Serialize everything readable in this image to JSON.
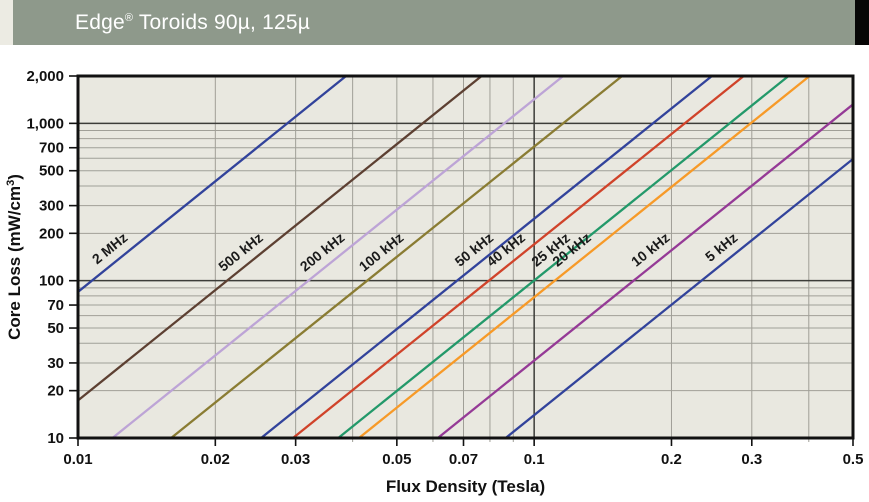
{
  "header": {
    "title_main": "Edge",
    "title_registered": "®",
    "title_rest": " Toroids 90µ, 125µ"
  },
  "colors": {
    "header_bar": "#8e998b",
    "header_left_strip": "#ecebe3",
    "header_right_strip": "#060606",
    "plot_background": "#e9e8e0",
    "grid_minor": "#a09f97",
    "grid_major": "#3c3c38",
    "axis_frame": "#111111",
    "tick_text": "#111111",
    "series_label_text": "#1a1a1a"
  },
  "chart_data": {
    "type": "line",
    "title": "Edge Toroids 90µ, 125µ core loss curves",
    "xlabel": "Flux Density (Tesla)",
    "ylabel_prefix": "Core Loss (mW/cm",
    "ylabel_sup": "3",
    "ylabel_suffix": ")",
    "x_scale": "log",
    "y_scale": "log",
    "xlim": [
      0.01,
      0.5
    ],
    "ylim": [
      10,
      2000
    ],
    "grid": true,
    "x_ticks": [
      {
        "value": 0.01,
        "label": "0.01"
      },
      {
        "value": 0.02,
        "label": "0.02"
      },
      {
        "value": 0.03,
        "label": "0.03"
      },
      {
        "value": 0.05,
        "label": "0.05"
      },
      {
        "value": 0.07,
        "label": "0.07"
      },
      {
        "value": 0.1,
        "label": "0.1"
      },
      {
        "value": 0.2,
        "label": "0.2"
      },
      {
        "value": 0.3,
        "label": "0.3"
      },
      {
        "value": 0.5,
        "label": "0.5"
      }
    ],
    "y_ticks": [
      {
        "value": 10,
        "label": "10"
      },
      {
        "value": 20,
        "label": "20"
      },
      {
        "value": 30,
        "label": "30"
      },
      {
        "value": 50,
        "label": "50"
      },
      {
        "value": 70,
        "label": "70"
      },
      {
        "value": 100,
        "label": "100"
      },
      {
        "value": 200,
        "label": "200"
      },
      {
        "value": 300,
        "label": "300"
      },
      {
        "value": 500,
        "label": "500"
      },
      {
        "value": 700,
        "label": "700"
      },
      {
        "value": 1000,
        "label": "1,000"
      },
      {
        "value": 2000,
        "label": "2,000"
      }
    ],
    "x_minor_gridlines": [
      0.02,
      0.03,
      0.04,
      0.05,
      0.06,
      0.07,
      0.08,
      0.09,
      0.2,
      0.3,
      0.4
    ],
    "x_major_gridlines": [
      0.1
    ],
    "y_minor_gridlines": [
      20,
      30,
      40,
      50,
      60,
      70,
      80,
      90,
      200,
      300,
      400,
      500,
      600,
      700,
      800,
      900
    ],
    "y_major_gridlines": [
      100,
      1000
    ],
    "loss_exponent_beta": 2.33,
    "series": [
      {
        "name": "2 MHz",
        "color": "#32439b",
        "B_at_100mW": 0.0107,
        "points": [
          [
            0.004,
            10
          ],
          [
            0.0107,
            100
          ],
          [
            0.0387,
            2000
          ]
        ]
      },
      {
        "name": "500 kHz",
        "color": "#5d4032",
        "B_at_100mW": 0.0212,
        "points": [
          [
            0.0079,
            10
          ],
          [
            0.0212,
            100
          ],
          [
            0.0767,
            2000
          ]
        ]
      },
      {
        "name": "200 kHz",
        "color": "#bda4d6",
        "B_at_100mW": 0.032,
        "points": [
          [
            0.0119,
            10
          ],
          [
            0.032,
            100
          ],
          [
            0.1158,
            2000
          ]
        ]
      },
      {
        "name": "100 kHz",
        "color": "#8a7c33",
        "B_at_100mW": 0.0431,
        "points": [
          [
            0.016,
            10
          ],
          [
            0.0431,
            100
          ],
          [
            0.1559,
            2000
          ]
        ]
      },
      {
        "name": "50 kHz",
        "color": "#32439b",
        "B_at_100mW": 0.0678,
        "points": [
          [
            0.0252,
            10
          ],
          [
            0.0678,
            100
          ],
          [
            0.2453,
            2000
          ]
        ]
      },
      {
        "name": "40 kHz",
        "color": "#d0432a",
        "B_at_100mW": 0.0796,
        "points": [
          [
            0.0296,
            10
          ],
          [
            0.0796,
            100
          ],
          [
            0.288,
            2000
          ]
        ]
      },
      {
        "name": "25 kHz",
        "color": "#23996a",
        "B_at_100mW": 0.0998,
        "points": [
          [
            0.0372,
            10
          ],
          [
            0.0998,
            100
          ],
          [
            0.3611,
            2000
          ]
        ]
      },
      {
        "name": "20 kHz",
        "color": "#f79a28",
        "B_at_100mW": 0.111,
        "points": [
          [
            0.0413,
            10
          ],
          [
            0.111,
            100
          ],
          [
            0.4016,
            2000
          ]
        ]
      },
      {
        "name": "10 kHz",
        "color": "#953a96",
        "B_at_100mW": 0.1652,
        "points": [
          [
            0.0615,
            10
          ],
          [
            0.1652,
            100
          ],
          [
            0.5977,
            2000
          ]
        ]
      },
      {
        "name": "5 kHz",
        "color": "#32439b",
        "B_at_100mW": 0.2327,
        "points": [
          [
            0.0866,
            10
          ],
          [
            0.2327,
            100
          ],
          [
            0.8419,
            2000
          ]
        ]
      }
    ]
  }
}
